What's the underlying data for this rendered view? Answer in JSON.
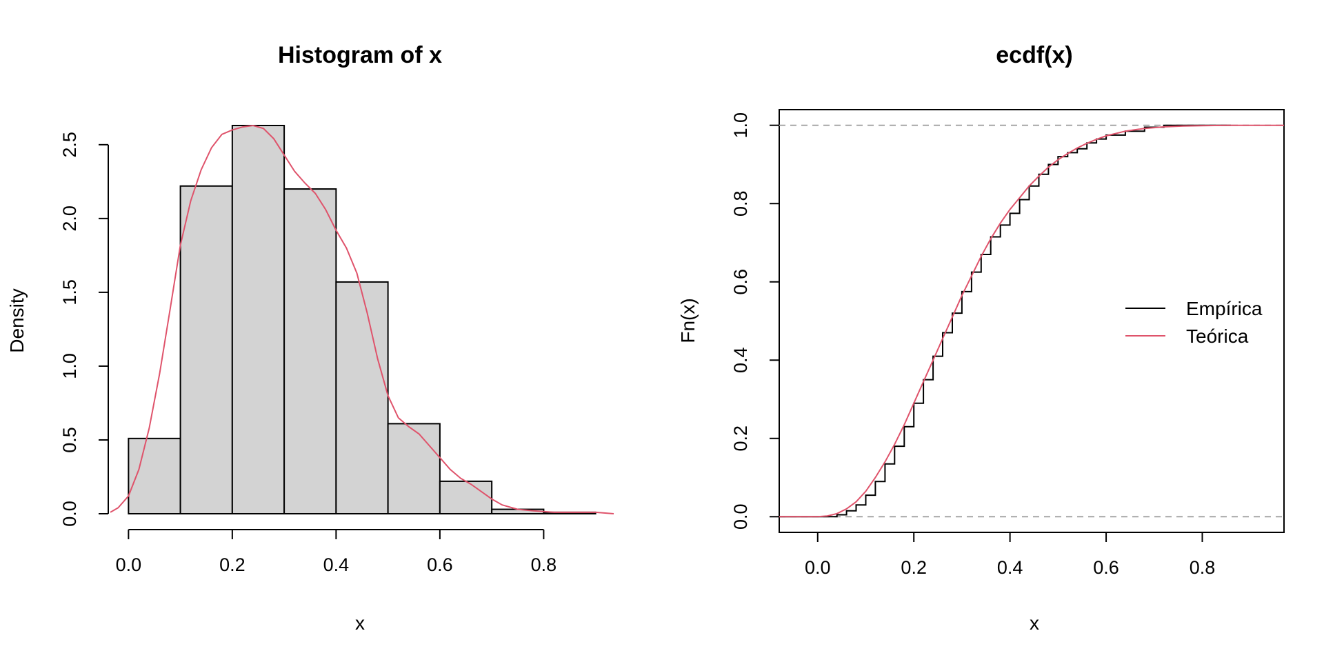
{
  "colors": {
    "bar_fill": "#d3d3d3",
    "ink": "#000000",
    "theoretical": "#df536b",
    "reference_line": "#a6a6a6",
    "background": "#ffffff"
  },
  "chart_data": [
    {
      "type": "bar",
      "subtype": "histogram",
      "title": "Histogram of x",
      "xlabel": "x",
      "ylabel": "Density",
      "bin_edges": [
        0.0,
        0.1,
        0.2,
        0.3,
        0.4,
        0.5,
        0.6,
        0.7,
        0.8,
        0.9
      ],
      "values": [
        0.51,
        2.22,
        2.63,
        2.2,
        1.57,
        0.61,
        0.22,
        0.03,
        0.01
      ],
      "xlim": [
        -0.035,
        0.935
      ],
      "ylim": [
        0,
        2.63
      ],
      "x_ticks": [
        0.0,
        0.2,
        0.4,
        0.6,
        0.8
      ],
      "x_tick_labels": [
        "0.0",
        "0.2",
        "0.4",
        "0.6",
        "0.8"
      ],
      "y_ticks": [
        0.0,
        0.5,
        1.0,
        1.5,
        2.0,
        2.5
      ],
      "y_tick_labels": [
        "0.0",
        "0.5",
        "1.0",
        "1.5",
        "2.0",
        "2.5"
      ],
      "density_curve": {
        "name": "density",
        "x": [
          -0.035,
          -0.02,
          0.0,
          0.02,
          0.04,
          0.06,
          0.08,
          0.1,
          0.12,
          0.14,
          0.16,
          0.18,
          0.2,
          0.22,
          0.24,
          0.26,
          0.28,
          0.3,
          0.32,
          0.34,
          0.36,
          0.38,
          0.4,
          0.42,
          0.44,
          0.46,
          0.48,
          0.5,
          0.52,
          0.54,
          0.56,
          0.58,
          0.6,
          0.62,
          0.64,
          0.66,
          0.68,
          0.7,
          0.72,
          0.75,
          0.78,
          0.82,
          0.86,
          0.9,
          0.935
        ],
        "y": [
          0.01,
          0.04,
          0.12,
          0.3,
          0.58,
          0.95,
          1.38,
          1.82,
          2.12,
          2.33,
          2.48,
          2.57,
          2.6,
          2.62,
          2.63,
          2.61,
          2.54,
          2.43,
          2.32,
          2.24,
          2.17,
          2.06,
          1.92,
          1.8,
          1.63,
          1.36,
          1.05,
          0.8,
          0.65,
          0.59,
          0.54,
          0.46,
          0.38,
          0.3,
          0.24,
          0.2,
          0.15,
          0.1,
          0.06,
          0.03,
          0.02,
          0.01,
          0.01,
          0.01,
          0.0
        ]
      }
    },
    {
      "type": "line",
      "subtype": "ecdf",
      "title": "ecdf(x)",
      "xlabel": "x",
      "ylabel": "Fn(x)",
      "xlim": [
        -0.08,
        0.97
      ],
      "ylim": [
        -0.04,
        1.04
      ],
      "x_ticks": [
        0.0,
        0.2,
        0.4,
        0.6,
        0.8
      ],
      "x_tick_labels": [
        "0.0",
        "0.2",
        "0.4",
        "0.6",
        "0.8"
      ],
      "y_ticks": [
        0.0,
        0.2,
        0.4,
        0.6,
        0.8,
        1.0
      ],
      "y_tick_labels": [
        "0.0",
        "0.2",
        "0.4",
        "0.6",
        "0.8",
        "1.0"
      ],
      "reference_lines": [
        0.0,
        1.0
      ],
      "legend": {
        "placement": "right",
        "entries": [
          "Empírica",
          "Teórica"
        ]
      },
      "series": [
        {
          "name": "Empírica",
          "x": [
            -0.08,
            0.0,
            0.02,
            0.04,
            0.06,
            0.08,
            0.1,
            0.12,
            0.14,
            0.16,
            0.18,
            0.2,
            0.22,
            0.24,
            0.26,
            0.28,
            0.3,
            0.32,
            0.34,
            0.36,
            0.38,
            0.4,
            0.42,
            0.44,
            0.46,
            0.48,
            0.5,
            0.52,
            0.54,
            0.56,
            0.58,
            0.6,
            0.64,
            0.68,
            0.72,
            0.76,
            0.8,
            0.86
          ],
          "y": [
            0.0,
            0.0,
            0.0,
            0.005,
            0.015,
            0.03,
            0.055,
            0.09,
            0.135,
            0.18,
            0.23,
            0.29,
            0.35,
            0.41,
            0.47,
            0.52,
            0.575,
            0.625,
            0.67,
            0.715,
            0.745,
            0.775,
            0.81,
            0.845,
            0.875,
            0.9,
            0.92,
            0.93,
            0.94,
            0.955,
            0.965,
            0.975,
            0.985,
            0.995,
            1.0,
            1.0,
            1.0,
            1.0
          ]
        },
        {
          "name": "Teórica",
          "x": [
            -0.08,
            0.0,
            0.02,
            0.04,
            0.06,
            0.08,
            0.1,
            0.12,
            0.14,
            0.16,
            0.18,
            0.2,
            0.22,
            0.24,
            0.26,
            0.28,
            0.3,
            0.32,
            0.34,
            0.36,
            0.38,
            0.4,
            0.42,
            0.44,
            0.46,
            0.48,
            0.5,
            0.52,
            0.54,
            0.56,
            0.58,
            0.6,
            0.64,
            0.68,
            0.72,
            0.76,
            0.8,
            0.86,
            0.97
          ],
          "y": [
            0.0,
            0.0,
            0.002,
            0.008,
            0.02,
            0.038,
            0.065,
            0.1,
            0.14,
            0.185,
            0.235,
            0.29,
            0.345,
            0.4,
            0.455,
            0.51,
            0.565,
            0.615,
            0.665,
            0.71,
            0.75,
            0.785,
            0.815,
            0.845,
            0.87,
            0.893,
            0.912,
            0.928,
            0.942,
            0.954,
            0.964,
            0.973,
            0.985,
            0.992,
            0.996,
            0.998,
            0.999,
            1.0,
            1.0
          ]
        }
      ]
    }
  ]
}
